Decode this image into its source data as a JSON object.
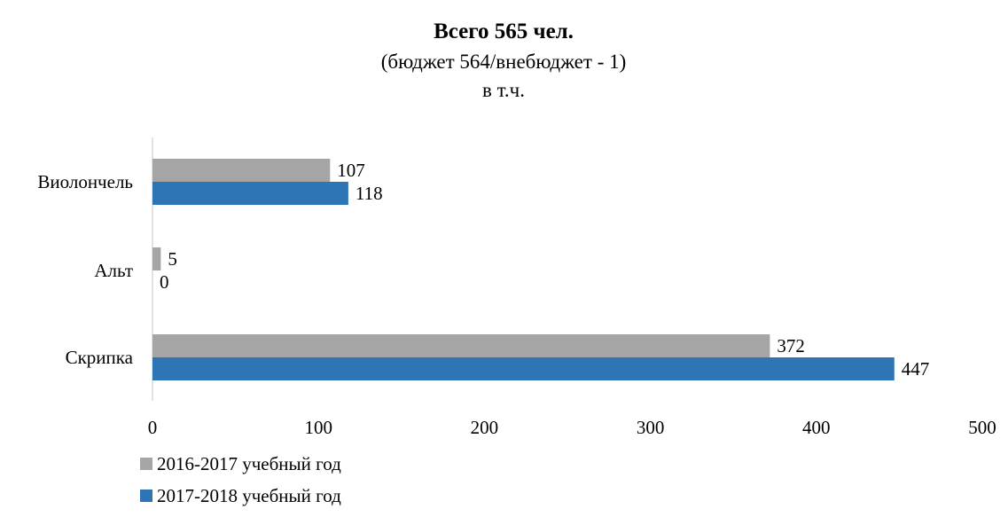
{
  "chart_data": {
    "type": "bar",
    "orientation": "horizontal",
    "title": "Всего  565 чел.",
    "subtitle_lines": [
      "(бюджет  564/внебюджет - 1)",
      "в т.ч."
    ],
    "categories": [
      "Виолончель",
      "Альт",
      "Скрипка"
    ],
    "series": [
      {
        "name": "2016-2017 учебный год",
        "color": "#A5A5A5",
        "values": [
          107,
          5,
          372
        ]
      },
      {
        "name": "2017-2018 учебный год",
        "color": "#2E75B6",
        "values": [
          118,
          0,
          447
        ]
      }
    ],
    "x_ticks": [
      "0",
      "100",
      "200",
      "300",
      "400",
      "500"
    ],
    "xlim": [
      0,
      500
    ],
    "grid": false,
    "legend_position": "bottom-left"
  }
}
